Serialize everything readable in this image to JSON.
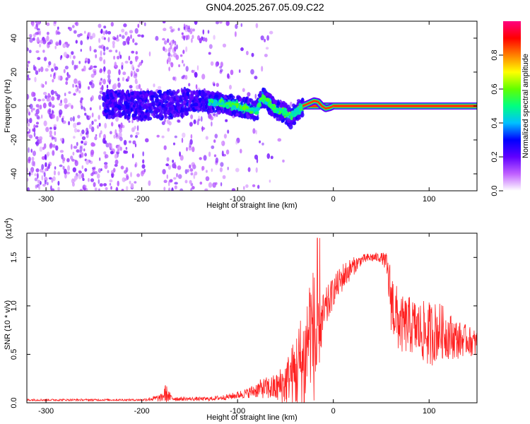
{
  "title": "GN04.2025.267.05.09.C22",
  "chart_data": [
    {
      "type": "heatmap",
      "name": "spectrogram",
      "xlabel": "Height of straight line (km)",
      "ylabel": "Frequency (Hz)",
      "xlim": [
        -320,
        150
      ],
      "ylim": [
        -50,
        50
      ],
      "x_ticks": [
        -300,
        -200,
        -100,
        0,
        100
      ],
      "x_tick_labels": [
        "-300",
        "-200",
        "-100",
        "0",
        "100"
      ],
      "y_ticks": [
        -40,
        -20,
        0,
        20,
        40
      ],
      "y_tick_labels": [
        "-40",
        "-20",
        "0",
        "20",
        "40"
      ],
      "ridge": {
        "x": [
          -230,
          -200,
          -170,
          -140,
          -120,
          -100,
          -90,
          -80,
          -75,
          -70,
          -60,
          -50,
          -45,
          -40,
          -32,
          -28,
          -20,
          -15,
          -10,
          -5,
          0,
          50,
          100,
          150
        ],
        "freq": [
          1,
          0,
          1,
          3,
          2,
          0,
          -1,
          -3,
          5,
          3,
          -2,
          -4,
          -7,
          -4,
          0,
          1,
          2,
          3,
          0,
          -2,
          0,
          0,
          0,
          0
        ]
      },
      "colorbar": {
        "label": "Normalized spectral amplitude",
        "range": [
          0,
          1
        ],
        "ticks": [
          0,
          0.2,
          0.4,
          0.6,
          0.8
        ],
        "tick_labels": [
          "0.0",
          "0.2",
          "0.4",
          "0.6",
          "0.8"
        ],
        "colors": [
          "#ffffff",
          "#c060ff",
          "#6000ff",
          "#0000ff",
          "#00c0ff",
          "#00ff80",
          "#60ff00",
          "#ffff00",
          "#ff8000",
          "#ff0000",
          "#ff0080"
        ]
      }
    },
    {
      "type": "line",
      "name": "snr",
      "xlabel": "Height of straight line (km)",
      "ylabel": "SNR (10 * v/v)",
      "y_scale_label": "(x10",
      "y_scale_exp": "4",
      "xlim": [
        -320,
        150
      ],
      "ylim": [
        0,
        1.75
      ],
      "x_ticks": [
        -300,
        -200,
        -100,
        0,
        100
      ],
      "x_tick_labels": [
        "-300",
        "-200",
        "-100",
        "0",
        "100"
      ],
      "y_ticks": [
        0,
        0.5,
        1.0,
        1.5
      ],
      "y_tick_labels": [
        "0.0",
        "0.5",
        "1.0",
        "1.5"
      ],
      "series_color": "#ff2020",
      "envelope": {
        "x": [
          -320,
          -250,
          -200,
          -180,
          -175,
          -170,
          -160,
          -130,
          -110,
          -90,
          -75,
          -60,
          -50,
          -45,
          -40,
          -35,
          -30,
          -25,
          -20,
          -17,
          -15,
          -10,
          0,
          10,
          20,
          30,
          40,
          50,
          55,
          60,
          65,
          70,
          80,
          90,
          100,
          110,
          120,
          130,
          140,
          150
        ],
        "base": [
          0.03,
          0.03,
          0.03,
          0.05,
          0.1,
          0.05,
          0.04,
          0.04,
          0.06,
          0.1,
          0.15,
          0.15,
          0.2,
          0.3,
          0.3,
          0.4,
          0.4,
          0.8,
          0.7,
          0.5,
          0.7,
          0.9,
          1.15,
          1.3,
          1.4,
          1.48,
          1.5,
          1.5,
          1.45,
          1.1,
          0.9,
          0.8,
          0.8,
          0.75,
          0.7,
          0.75,
          0.7,
          0.65,
          0.65,
          0.6
        ],
        "amp": [
          0.01,
          0.01,
          0.01,
          0.04,
          0.1,
          0.04,
          0.02,
          0.02,
          0.03,
          0.05,
          0.1,
          0.15,
          0.25,
          0.25,
          0.4,
          0.5,
          0.6,
          0.6,
          0.7,
          0.5,
          0.35,
          0.25,
          0.15,
          0.15,
          0.1,
          0.05,
          0.05,
          0.05,
          0.1,
          0.35,
          0.35,
          0.3,
          0.3,
          0.3,
          0.35,
          0.3,
          0.25,
          0.2,
          0.15,
          0.15
        ]
      }
    }
  ]
}
